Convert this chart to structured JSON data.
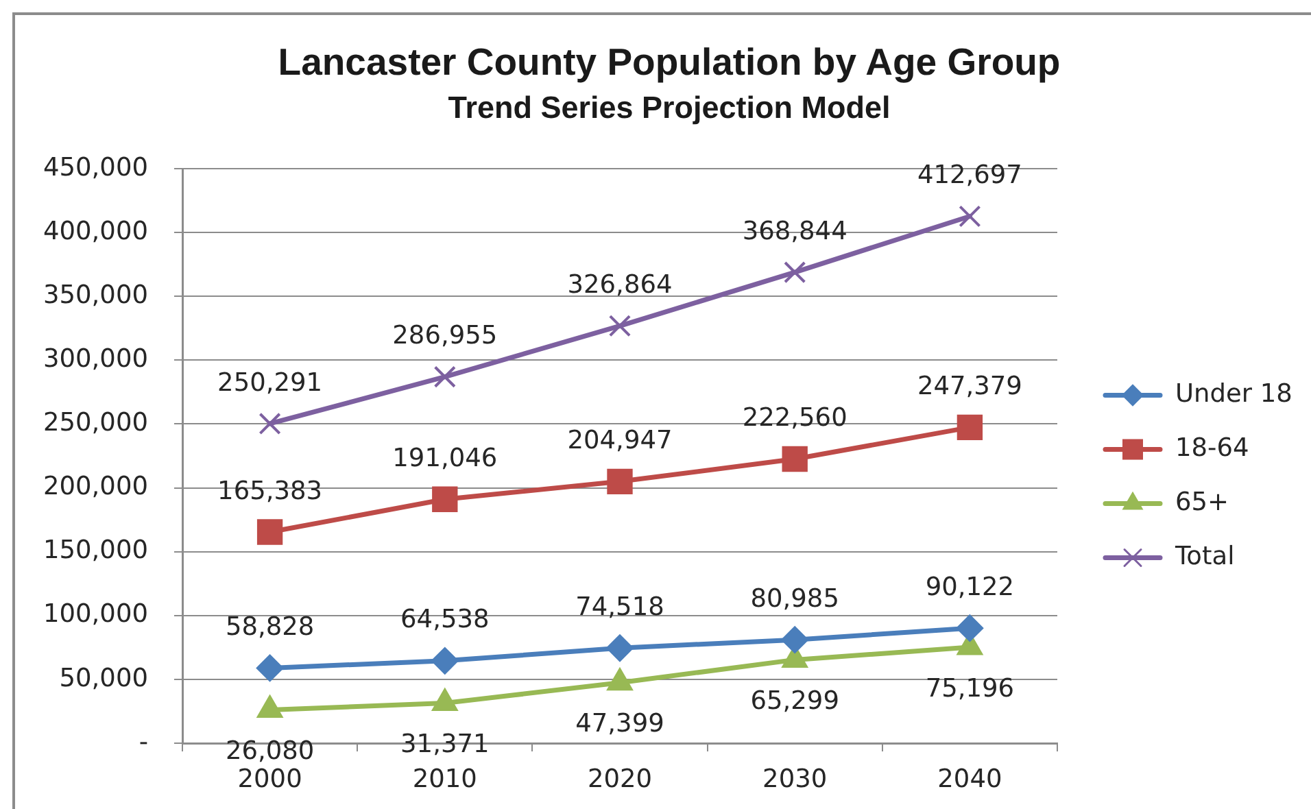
{
  "chart_data": {
    "type": "line",
    "title": "Lancaster County Population by Age Group",
    "subtitle": "Trend Series Projection Model",
    "categories": [
      "2000",
      "2010",
      "2020",
      "2030",
      "2040"
    ],
    "series": [
      {
        "name": "Under 18",
        "color": "#4a7ebb",
        "marker": "diamond",
        "values": [
          58828,
          64538,
          74518,
          80985,
          90122
        ],
        "value_labels": [
          "58,828",
          "64,538",
          "74,518",
          "80,985",
          "90,122"
        ]
      },
      {
        "name": "18-64",
        "color": "#be4b48",
        "marker": "square",
        "values": [
          165383,
          191046,
          204947,
          222560,
          247379
        ],
        "value_labels": [
          "165,383",
          "191,046",
          "204,947",
          "222,560",
          "247,379"
        ]
      },
      {
        "name": "65+",
        "color": "#98b954",
        "marker": "triangle",
        "values": [
          26080,
          31371,
          47399,
          65299,
          75196
        ],
        "value_labels": [
          "26,080",
          "31,371",
          "47,399",
          "65,299",
          "75,196"
        ]
      },
      {
        "name": "Total",
        "color": "#7d60a0",
        "marker": "cross",
        "values": [
          250291,
          286955,
          326864,
          368844,
          412697
        ],
        "value_labels": [
          "250,291",
          "286,955",
          "326,864",
          "368,844",
          "412,697"
        ]
      }
    ],
    "ylim": [
      0,
      450000
    ],
    "yticks": [
      {
        "value": 0,
        "label": "-"
      },
      {
        "value": 50000,
        "label": "50,000"
      },
      {
        "value": 100000,
        "label": "100,000"
      },
      {
        "value": 150000,
        "label": "150,000"
      },
      {
        "value": 200000,
        "label": "200,000"
      },
      {
        "value": 250000,
        "label": "250,000"
      },
      {
        "value": 300000,
        "label": "300,000"
      },
      {
        "value": 350000,
        "label": "350,000"
      },
      {
        "value": 400000,
        "label": "400,000"
      },
      {
        "value": 450000,
        "label": "450,000"
      }
    ],
    "grid": "y",
    "legend": "right"
  }
}
